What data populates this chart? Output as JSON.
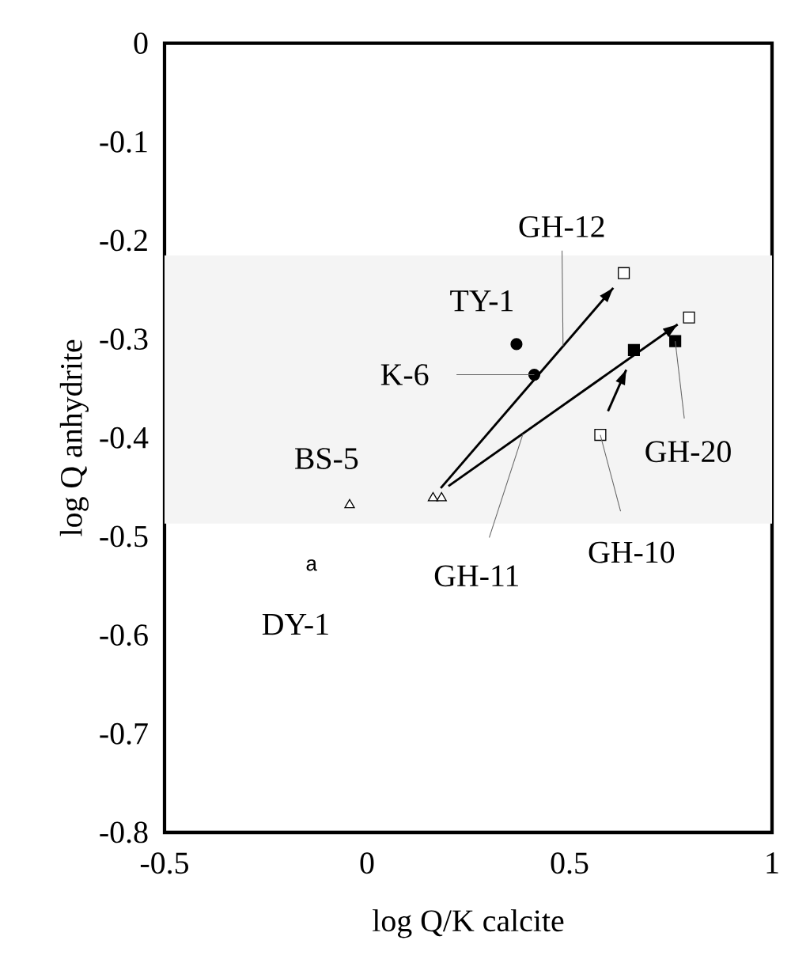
{
  "chart_data": {
    "type": "scatter",
    "xlabel": "log Q/K calcite",
    "ylabel": "log Q    anhydrite",
    "xlim": [
      -0.5,
      1
    ],
    "ylim": [
      -0.8,
      0
    ],
    "xticks": [
      -0.5,
      0,
      0.5,
      1
    ],
    "yticks": [
      -0.8,
      -0.7,
      -0.6,
      -0.5,
      -0.4,
      -0.3,
      -0.2,
      -0.1,
      0
    ],
    "grid": false,
    "bands": [
      {
        "axis": "y",
        "from": -0.487,
        "to": -0.215,
        "color": "#f4f4f4"
      }
    ],
    "series": [
      {
        "marker": "circle",
        "color": "#000000",
        "x": [
          0.369,
          0.413
        ],
        "values": [
          -0.305,
          -0.336
        ]
      },
      {
        "marker": "square",
        "color": "#ffffff",
        "x": [
          0.634,
          0.795,
          0.576
        ],
        "values": [
          -0.233,
          -0.278,
          -0.397
        ]
      },
      {
        "marker": "square",
        "color": "#000000",
        "x": [
          0.659,
          0.761
        ],
        "values": [
          -0.311,
          -0.302
        ]
      },
      {
        "marker": "triangle",
        "color": "#ffffff",
        "x": [
          0.163,
          0.184,
          -0.043
        ],
        "values": [
          -0.461,
          -0.461,
          -0.468
        ]
      },
      {
        "type": "line",
        "color": "#000000",
        "x": [
          0.182,
          0.608
        ],
        "values": [
          -0.451,
          -0.248
        ]
      },
      {
        "type": "line",
        "color": "#000000",
        "x": [
          0.201,
          0.767
        ],
        "values": [
          -0.449,
          -0.285
        ]
      },
      {
        "type": "line",
        "color": "#000000",
        "x": [
          0.595,
          0.64
        ],
        "values": [
          -0.373,
          -0.331
        ]
      }
    ],
    "annotations": [
      {
        "text": "GH-12",
        "x": 0.484,
        "y": -0.307
      },
      {
        "text": "TY-1",
        "x": 0.369,
        "y": -0.305
      },
      {
        "text": "K-6",
        "x": 0.413,
        "y": -0.336
      },
      {
        "text": "BS-5",
        "x": -0.043,
        "y": -0.468
      },
      "a",
      "DY-1",
      {
        "text": "GH-11",
        "x": 0.385,
        "y": -0.396
      },
      {
        "text": "GH-10",
        "x": 0.576,
        "y": -0.397
      },
      {
        "text": "GH-20",
        "x": 0.761,
        "y": -0.302
      }
    ]
  }
}
